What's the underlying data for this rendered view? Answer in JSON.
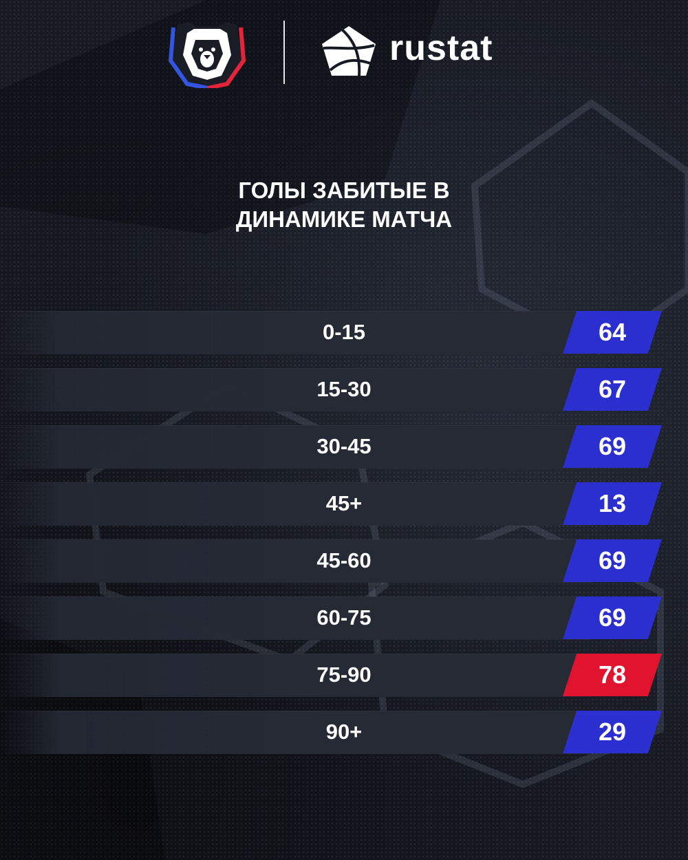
{
  "header": {
    "league_logo_icon": "rpl-bear-shield-icon",
    "partner_logo_icon": "rustat-ball-icon",
    "partner_name": "rustat"
  },
  "title": {
    "line1": "ГОЛЫ ЗАБИТЫЕ В",
    "line2": "ДИНАМИКЕ МАТЧА"
  },
  "colors": {
    "accent_blue": "#2c2fd0",
    "accent_red": "#e0142f",
    "background": "#14171f"
  },
  "rows": [
    {
      "label": "0-15",
      "value": "64",
      "color": "blue"
    },
    {
      "label": "15-30",
      "value": "67",
      "color": "blue"
    },
    {
      "label": "30-45",
      "value": "69",
      "color": "blue"
    },
    {
      "label": "45+",
      "value": "13",
      "color": "blue"
    },
    {
      "label": "45-60",
      "value": "69",
      "color": "blue"
    },
    {
      "label": "60-75",
      "value": "69",
      "color": "blue"
    },
    {
      "label": "75-90",
      "value": "78",
      "color": "red"
    },
    {
      "label": "90+",
      "value": "29",
      "color": "blue"
    }
  ]
}
